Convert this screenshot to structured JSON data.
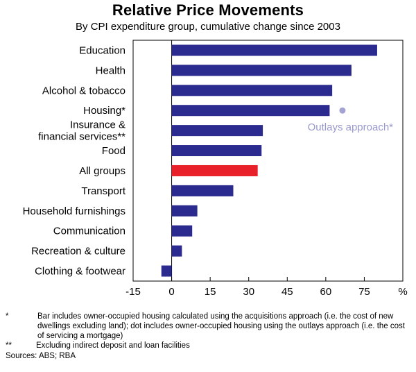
{
  "chart_data": {
    "type": "bar",
    "orientation": "horizontal",
    "title": "Relative Price Movements",
    "subtitle": "By CPI expenditure group, cumulative change since 2003",
    "unit_label": "%",
    "xlim": [
      -15,
      90
    ],
    "xticks": [
      "-15",
      "0",
      "15",
      "30",
      "45",
      "60",
      "75"
    ],
    "xtick_values": [
      -15,
      0,
      15,
      30,
      45,
      60,
      75
    ],
    "categories": [
      "Education",
      "Health",
      "Alcohol & tobacco",
      "Housing*",
      "Insurance & financial services**",
      "Food",
      "All groups",
      "Transport",
      "Household furnishings",
      "Communication",
      "Recreation & culture",
      "Clothing & footwear"
    ],
    "category_lines": [
      [
        "Education"
      ],
      [
        "Health"
      ],
      [
        "Alcohol & tobacco"
      ],
      [
        "Housing*"
      ],
      [
        "Insurance &",
        "financial services**"
      ],
      [
        "Food"
      ],
      [
        "All groups"
      ],
      [
        "Transport"
      ],
      [
        "Household furnishings"
      ],
      [
        "Communication"
      ],
      [
        "Recreation & culture"
      ],
      [
        "Clothing & footwear"
      ]
    ],
    "values": [
      80,
      70,
      62.5,
      61.5,
      35.5,
      35,
      33.5,
      24,
      10,
      8,
      4,
      -4
    ],
    "highlight_category": "All groups",
    "dot": {
      "category": "Housing*",
      "value": 66.5,
      "label": "Outlays approach*"
    },
    "colors": {
      "bar": "#2b2a8f",
      "highlight": "#e8202a",
      "dot": "#a3a3d3",
      "axis": "#000000"
    }
  },
  "footnotes": [
    {
      "mark": "*",
      "text": "Bar includes owner-occupied housing calculated using the acquisitions approach (i.e. the cost of new dwellings excluding land); dot includes owner-occupied housing using the outlays approach (i.e. the cost of servicing a mortgage)"
    },
    {
      "mark": "**",
      "text": "Excluding indirect deposit and loan facilities"
    }
  ],
  "sources": "Sources: ABS; RBA"
}
